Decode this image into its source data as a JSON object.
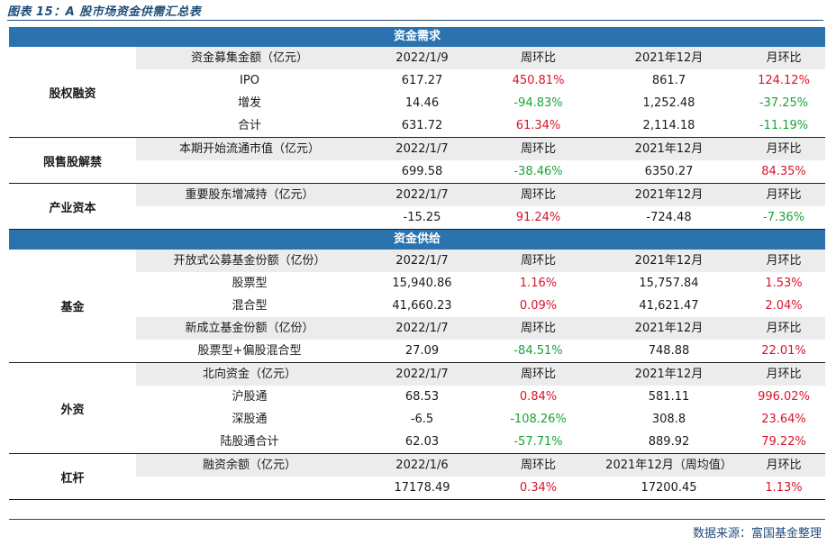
{
  "title": "图表 15：A 股市场资金供需汇总表",
  "source": "数据来源：富国基金整理",
  "colors": {
    "band": "#2b72b0",
    "header_row": "#ececec",
    "positive": "#d9142b",
    "negative": "#1aa33a"
  },
  "demand_band": "资金需求",
  "supply_band": "资金供给",
  "sections": [
    {
      "label": "股权融资",
      "rows": [
        {
          "hdr": true,
          "cells": [
            "资金募集金额（亿元）",
            "2022/1/9",
            "周环比",
            "2021年12月",
            "月环比"
          ]
        },
        {
          "hdr": false,
          "cells": [
            "IPO",
            "617.27",
            "450.81%",
            "861.7",
            "124.12%"
          ]
        },
        {
          "hdr": false,
          "cells": [
            "增发",
            "14.46",
            "-94.83%",
            "1,252.48",
            "-37.25%"
          ]
        },
        {
          "hdr": false,
          "cells": [
            "合计",
            "631.72",
            "61.34%",
            "2,114.18",
            "-11.19%"
          ]
        }
      ]
    },
    {
      "label": "限售股解禁",
      "rows": [
        {
          "hdr": true,
          "cells": [
            "本期开始流通市值（亿元）",
            "2022/1/7",
            "周环比",
            "2021年12月",
            "月环比"
          ]
        },
        {
          "hdr": false,
          "cells": [
            "",
            "699.58",
            "-38.46%",
            "6350.27",
            "84.35%"
          ]
        }
      ]
    },
    {
      "label": "产业资本",
      "rows": [
        {
          "hdr": true,
          "cells": [
            "重要股东增减持（亿元）",
            "2022/1/7",
            "周环比",
            "2021年12月",
            "月环比"
          ]
        },
        {
          "hdr": false,
          "cells": [
            "",
            "-15.25",
            "91.24%",
            "-724.48",
            "-7.36%"
          ]
        }
      ]
    },
    {
      "label": "基金",
      "rows": [
        {
          "hdr": true,
          "cells": [
            "开放式公募基金份额（亿份）",
            "2022/1/7",
            "周环比",
            "2021年12月",
            "月环比"
          ]
        },
        {
          "hdr": false,
          "cells": [
            "股票型",
            "15,940.86",
            "1.16%",
            "15,757.84",
            "1.53%"
          ]
        },
        {
          "hdr": false,
          "cells": [
            "混合型",
            "41,660.23",
            "0.09%",
            "41,621.47",
            "2.04%"
          ]
        },
        {
          "hdr": true,
          "cells": [
            "新成立基金份额（亿份）",
            "2022/1/7",
            "周环比",
            "2021年12月",
            "月环比"
          ]
        },
        {
          "hdr": false,
          "cells": [
            "股票型+偏股混合型",
            "27.09",
            "-84.51%",
            "748.88",
            "22.01%"
          ]
        }
      ]
    },
    {
      "label": "外资",
      "rows": [
        {
          "hdr": true,
          "cells": [
            "北向资金（亿元）",
            "2022/1/7",
            "周环比",
            "2021年12月",
            "月环比"
          ]
        },
        {
          "hdr": false,
          "cells": [
            "沪股通",
            "68.53",
            "0.84%",
            "581.11",
            "996.02%"
          ]
        },
        {
          "hdr": false,
          "cells": [
            "深股通",
            "-6.5",
            "-108.26%",
            "308.8",
            "23.64%"
          ]
        },
        {
          "hdr": false,
          "cells": [
            "陆股通合计",
            "62.03",
            "-57.71%",
            "889.92",
            "79.22%"
          ]
        }
      ]
    },
    {
      "label": "杠杆",
      "rows": [
        {
          "hdr": true,
          "cells": [
            "融资余额（亿元）",
            "2022/1/6",
            "周环比",
            "2021年12月（周均值）",
            "月环比"
          ]
        },
        {
          "hdr": false,
          "cells": [
            "",
            "17178.49",
            "0.34%",
            "17200.45",
            "1.13%"
          ]
        }
      ]
    }
  ]
}
